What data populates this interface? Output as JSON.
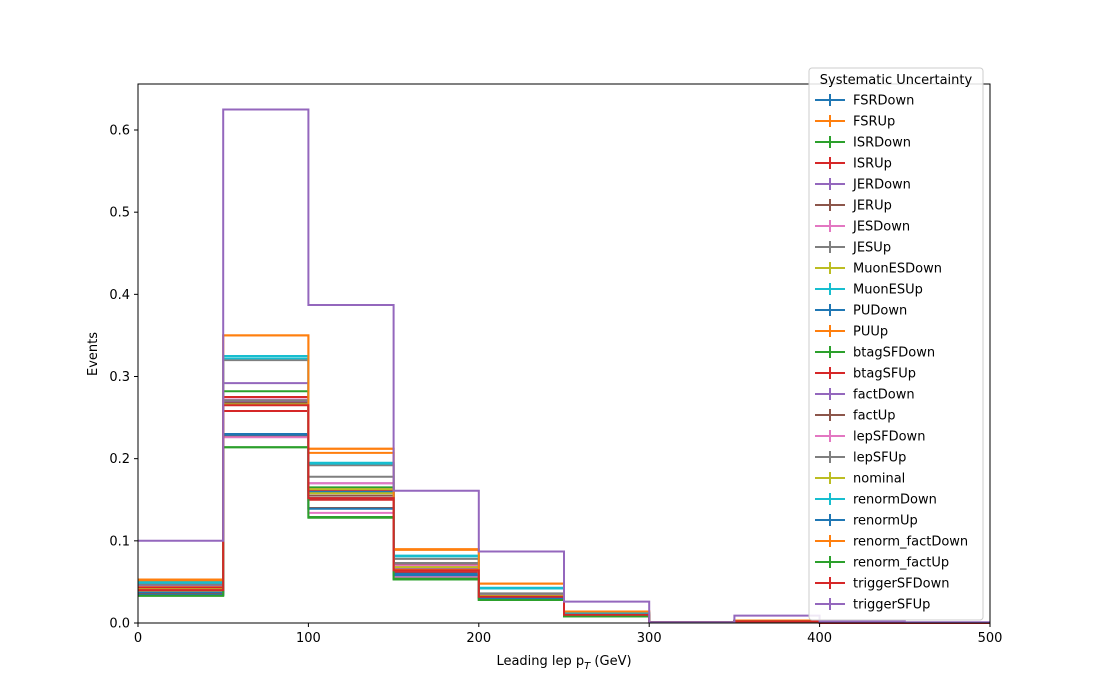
{
  "chart_data": {
    "type": "line",
    "xlabel": "Leading lep p",
    "xlabel_sub": "T",
    "xlabel_unit": "(GeV)",
    "ylabel": "Events",
    "xlim": [
      0,
      500
    ],
    "ylim": [
      0,
      0.656
    ],
    "xticks": [
      0,
      100,
      200,
      300,
      400,
      500
    ],
    "yticks": [
      0.0,
      0.1,
      0.2,
      0.3,
      0.4,
      0.5,
      0.6
    ],
    "grid": false,
    "bin_edges": [
      0,
      50,
      100,
      150,
      200,
      250,
      300,
      350,
      400,
      450,
      500
    ],
    "legend": {
      "title": "Systematic Uncertainty",
      "placement": "upper right"
    },
    "series": [
      {
        "name": "FSRDown",
        "color": "#1f77b4",
        "values": [
          0.04,
          0.23,
          0.16,
          0.065,
          0.032,
          0.01,
          0.001,
          0.002,
          0.0,
          0.0
        ]
      },
      {
        "name": "FSRUp",
        "color": "#ff7f0e",
        "values": [
          0.053,
          0.35,
          0.212,
          0.089,
          0.048,
          0.014,
          0.001,
          0.003,
          0.0,
          0.0
        ]
      },
      {
        "name": "ISRDown",
        "color": "#2ca02c",
        "values": [
          0.034,
          0.214,
          0.128,
          0.053,
          0.028,
          0.008,
          0.001,
          0.002,
          0.0,
          0.0
        ]
      },
      {
        "name": "ISRUp",
        "color": "#d62728",
        "values": [
          0.042,
          0.258,
          0.15,
          0.062,
          0.031,
          0.01,
          0.001,
          0.002,
          0.0,
          0.0
        ]
      },
      {
        "name": "JERDown",
        "color": "#9467bd",
        "values": [
          0.045,
          0.292,
          0.17,
          0.07,
          0.035,
          0.011,
          0.001,
          0.002,
          0.0,
          0.0
        ]
      },
      {
        "name": "JERUp",
        "color": "#8c564b",
        "values": [
          0.038,
          0.228,
          0.14,
          0.059,
          0.03,
          0.009,
          0.001,
          0.002,
          0.0,
          0.0
        ]
      },
      {
        "name": "JESDown",
        "color": "#e377c2",
        "values": [
          0.036,
          0.226,
          0.134,
          0.056,
          0.029,
          0.009,
          0.001,
          0.002,
          0.0,
          0.0
        ]
      },
      {
        "name": "JESUp",
        "color": "#7f7f7f",
        "values": [
          0.048,
          0.32,
          0.192,
          0.078,
          0.042,
          0.012,
          0.001,
          0.003,
          0.0,
          0.0
        ]
      },
      {
        "name": "MuonESDown",
        "color": "#bcbd22",
        "values": [
          0.039,
          0.268,
          0.158,
          0.068,
          0.033,
          0.01,
          0.001,
          0.002,
          0.0,
          0.0
        ]
      },
      {
        "name": "MuonESUp",
        "color": "#17becf",
        "values": [
          0.05,
          0.325,
          0.195,
          0.082,
          0.043,
          0.012,
          0.001,
          0.003,
          0.0,
          0.0
        ]
      },
      {
        "name": "PUDown",
        "color": "#1f77b4",
        "values": [
          0.037,
          0.23,
          0.152,
          0.06,
          0.032,
          0.009,
          0.001,
          0.002,
          0.0,
          0.0
        ]
      },
      {
        "name": "PUUp",
        "color": "#ff7f0e",
        "values": [
          0.044,
          0.275,
          0.207,
          0.066,
          0.035,
          0.01,
          0.001,
          0.002,
          0.0,
          0.0
        ]
      },
      {
        "name": "btagSFDown",
        "color": "#2ca02c",
        "values": [
          0.041,
          0.282,
          0.165,
          0.071,
          0.034,
          0.01,
          0.001,
          0.002,
          0.0,
          0.0
        ]
      },
      {
        "name": "btagSFUp",
        "color": "#d62728",
        "values": [
          0.043,
          0.275,
          0.162,
          0.069,
          0.033,
          0.01,
          0.001,
          0.002,
          0.0,
          0.0
        ]
      },
      {
        "name": "factDown",
        "color": "#9467bd",
        "values": [
          0.046,
          0.27,
          0.163,
          0.067,
          0.034,
          0.01,
          0.001,
          0.002,
          0.0,
          0.0
        ]
      },
      {
        "name": "factUp",
        "color": "#8c564b",
        "values": [
          0.035,
          0.268,
          0.155,
          0.072,
          0.031,
          0.009,
          0.001,
          0.002,
          0.0,
          0.0
        ]
      },
      {
        "name": "lepSFDown",
        "color": "#e377c2",
        "values": [
          0.04,
          0.272,
          0.17,
          0.07,
          0.033,
          0.01,
          0.001,
          0.002,
          0.0,
          0.0
        ]
      },
      {
        "name": "lepSFUp",
        "color": "#7f7f7f",
        "values": [
          0.047,
          0.271,
          0.178,
          0.073,
          0.036,
          0.011,
          0.001,
          0.002,
          0.0,
          0.0
        ]
      },
      {
        "name": "nominal",
        "color": "#bcbd22",
        "values": [
          0.041,
          0.266,
          0.163,
          0.068,
          0.033,
          0.01,
          0.001,
          0.002,
          0.0,
          0.0
        ]
      },
      {
        "name": "renormDown",
        "color": "#17becf",
        "values": [
          0.049,
          0.322,
          0.194,
          0.081,
          0.042,
          0.012,
          0.001,
          0.003,
          0.0,
          0.0
        ]
      },
      {
        "name": "renormUp",
        "color": "#1f77b4",
        "values": [
          0.034,
          0.229,
          0.139,
          0.058,
          0.03,
          0.009,
          0.001,
          0.002,
          0.0,
          0.0
        ]
      },
      {
        "name": "renorm_factDown",
        "color": "#ff7f0e",
        "values": [
          0.052,
          0.35,
          0.212,
          0.09,
          0.048,
          0.014,
          0.001,
          0.003,
          0.0,
          0.0
        ]
      },
      {
        "name": "renorm_factUp",
        "color": "#2ca02c",
        "values": [
          0.033,
          0.214,
          0.129,
          0.054,
          0.028,
          0.008,
          0.001,
          0.002,
          0.0,
          0.0
        ]
      },
      {
        "name": "triggerSFDown",
        "color": "#d62728",
        "values": [
          0.04,
          0.265,
          0.152,
          0.064,
          0.032,
          0.01,
          0.001,
          0.002,
          0.0,
          0.0
        ]
      },
      {
        "name": "triggerSFUp",
        "color": "#9467bd",
        "values": [
          0.1,
          0.625,
          0.387,
          0.161,
          0.087,
          0.026,
          0.001,
          0.009,
          0.002,
          0.001
        ]
      }
    ]
  }
}
